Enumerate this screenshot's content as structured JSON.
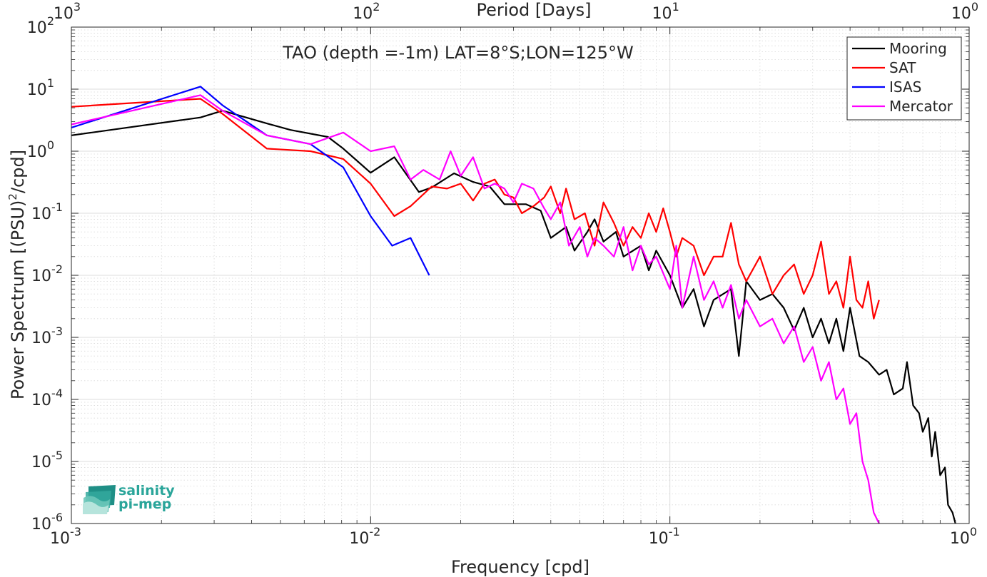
{
  "chart_data": {
    "type": "line",
    "title": "TAO (depth =-1m) LAT=8°S;LON=125°W",
    "xlabel": "Frequency [cpd]",
    "ylabel": "Power Spectrum [(PSU)",
    "ylabel_sup": "2",
    "ylabel_tail": "/cpd]",
    "top_xlabel": "Period [Days]",
    "xscale": "log",
    "yscale": "log",
    "xlim": [
      0.001,
      1
    ],
    "ylim": [
      1e-06,
      100
    ],
    "grid": true,
    "legend_position": "top-right",
    "x_ticks": [
      {
        "value": 0.001,
        "base": "10",
        "exp": "-3"
      },
      {
        "value": 0.01,
        "base": "10",
        "exp": "-2"
      },
      {
        "value": 0.1,
        "base": "10",
        "exp": "-1"
      },
      {
        "value": 1,
        "base": "10",
        "exp": "0"
      }
    ],
    "top_ticks": [
      {
        "value": 0.001,
        "base": "10",
        "exp": "3"
      },
      {
        "value": 0.01,
        "base": "10",
        "exp": "2"
      },
      {
        "value": 0.1,
        "base": "10",
        "exp": "1"
      },
      {
        "value": 1,
        "base": "10",
        "exp": "0"
      }
    ],
    "y_ticks": [
      {
        "value": 100,
        "base": "10",
        "exp": "2"
      },
      {
        "value": 10,
        "base": "10",
        "exp": "1"
      },
      {
        "value": 1,
        "base": "10",
        "exp": "0"
      },
      {
        "value": 0.1,
        "base": "10",
        "exp": "-1"
      },
      {
        "value": 0.01,
        "base": "10",
        "exp": "-2"
      },
      {
        "value": 0.001,
        "base": "10",
        "exp": "-3"
      },
      {
        "value": 0.0001,
        "base": "10",
        "exp": "-4"
      },
      {
        "value": 1e-05,
        "base": "10",
        "exp": "-5"
      },
      {
        "value": 1e-06,
        "base": "10",
        "exp": "-6"
      }
    ],
    "series": [
      {
        "name": "Mooring",
        "color": "#000000",
        "points": [
          [
            0.001,
            1.8
          ],
          [
            0.0027,
            3.5
          ],
          [
            0.0032,
            4.5
          ],
          [
            0.0045,
            2.8
          ],
          [
            0.0054,
            2.2
          ],
          [
            0.0072,
            1.7
          ],
          [
            0.0081,
            1.1
          ],
          [
            0.01,
            0.45
          ],
          [
            0.012,
            0.8
          ],
          [
            0.0145,
            0.22
          ],
          [
            0.016,
            0.26
          ],
          [
            0.019,
            0.44
          ],
          [
            0.022,
            0.32
          ],
          [
            0.025,
            0.27
          ],
          [
            0.028,
            0.14
          ],
          [
            0.033,
            0.14
          ],
          [
            0.037,
            0.11
          ],
          [
            0.04,
            0.04
          ],
          [
            0.045,
            0.06
          ],
          [
            0.048,
            0.025
          ],
          [
            0.053,
            0.05
          ],
          [
            0.056,
            0.08
          ],
          [
            0.06,
            0.035
          ],
          [
            0.066,
            0.05
          ],
          [
            0.07,
            0.02
          ],
          [
            0.08,
            0.03
          ],
          [
            0.085,
            0.012
          ],
          [
            0.09,
            0.025
          ],
          [
            0.1,
            0.01
          ],
          [
            0.11,
            0.003
          ],
          [
            0.12,
            0.006
          ],
          [
            0.13,
            0.0015
          ],
          [
            0.14,
            0.004
          ],
          [
            0.16,
            0.006
          ],
          [
            0.17,
            0.0005
          ],
          [
            0.18,
            0.008
          ],
          [
            0.2,
            0.004
          ],
          [
            0.22,
            0.005
          ],
          [
            0.24,
            0.003
          ],
          [
            0.26,
            0.0013
          ],
          [
            0.28,
            0.003
          ],
          [
            0.3,
            0.001
          ],
          [
            0.32,
            0.002
          ],
          [
            0.34,
            0.0008
          ],
          [
            0.36,
            0.002
          ],
          [
            0.38,
            0.0006
          ],
          [
            0.4,
            0.003
          ],
          [
            0.43,
            0.0005
          ],
          [
            0.46,
            0.0004
          ],
          [
            0.5,
            0.00025
          ],
          [
            0.53,
            0.0003
          ],
          [
            0.56,
            0.00012
          ],
          [
            0.6,
            0.00015
          ],
          [
            0.62,
            0.0004
          ],
          [
            0.65,
            8e-05
          ],
          [
            0.68,
            6e-05
          ],
          [
            0.7,
            3e-05
          ],
          [
            0.73,
            5e-05
          ],
          [
            0.75,
            1.2e-05
          ],
          [
            0.77,
            3e-05
          ],
          [
            0.8,
            6e-06
          ],
          [
            0.83,
            8e-06
          ],
          [
            0.85,
            2e-06
          ],
          [
            0.88,
            1.5e-06
          ],
          [
            0.9,
            1e-06
          ]
        ]
      },
      {
        "name": "SAT",
        "color": "#ff0000",
        "points": [
          [
            0.001,
            5.2
          ],
          [
            0.0027,
            7.0
          ],
          [
            0.0032,
            4.0
          ],
          [
            0.0045,
            1.1
          ],
          [
            0.0063,
            1.0
          ],
          [
            0.0081,
            0.75
          ],
          [
            0.01,
            0.3
          ],
          [
            0.012,
            0.09
          ],
          [
            0.0136,
            0.13
          ],
          [
            0.016,
            0.27
          ],
          [
            0.018,
            0.25
          ],
          [
            0.02,
            0.3
          ],
          [
            0.022,
            0.16
          ],
          [
            0.024,
            0.3
          ],
          [
            0.026,
            0.35
          ],
          [
            0.028,
            0.2
          ],
          [
            0.03,
            0.18
          ],
          [
            0.032,
            0.1
          ],
          [
            0.035,
            0.13
          ],
          [
            0.038,
            0.18
          ],
          [
            0.04,
            0.27
          ],
          [
            0.043,
            0.1
          ],
          [
            0.045,
            0.25
          ],
          [
            0.048,
            0.08
          ],
          [
            0.052,
            0.1
          ],
          [
            0.056,
            0.03
          ],
          [
            0.06,
            0.15
          ],
          [
            0.065,
            0.07
          ],
          [
            0.07,
            0.03
          ],
          [
            0.075,
            0.06
          ],
          [
            0.08,
            0.04
          ],
          [
            0.085,
            0.1
          ],
          [
            0.09,
            0.05
          ],
          [
            0.095,
            0.12
          ],
          [
            0.1,
            0.05
          ],
          [
            0.105,
            0.02
          ],
          [
            0.11,
            0.04
          ],
          [
            0.12,
            0.03
          ],
          [
            0.13,
            0.01
          ],
          [
            0.14,
            0.02
          ],
          [
            0.15,
            0.02
          ],
          [
            0.16,
            0.07
          ],
          [
            0.17,
            0.015
          ],
          [
            0.18,
            0.008
          ],
          [
            0.2,
            0.02
          ],
          [
            0.22,
            0.005
          ],
          [
            0.24,
            0.01
          ],
          [
            0.26,
            0.015
          ],
          [
            0.28,
            0.005
          ],
          [
            0.3,
            0.01
          ],
          [
            0.32,
            0.035
          ],
          [
            0.34,
            0.005
          ],
          [
            0.36,
            0.008
          ],
          [
            0.38,
            0.003
          ],
          [
            0.4,
            0.02
          ],
          [
            0.42,
            0.004
          ],
          [
            0.44,
            0.003
          ],
          [
            0.46,
            0.008
          ],
          [
            0.48,
            0.002
          ],
          [
            0.5,
            0.004
          ]
        ]
      },
      {
        "name": "ISAS",
        "color": "#0000ff",
        "points": [
          [
            0.001,
            2.4
          ],
          [
            0.0027,
            11.0
          ],
          [
            0.0032,
            5.5
          ],
          [
            0.0045,
            1.8
          ],
          [
            0.0063,
            1.3
          ],
          [
            0.0081,
            0.55
          ],
          [
            0.01,
            0.09
          ],
          [
            0.0118,
            0.03
          ],
          [
            0.0136,
            0.04
          ],
          [
            0.0157,
            0.01
          ]
        ]
      },
      {
        "name": "Mercator",
        "color": "#ff00ff",
        "points": [
          [
            0.001,
            2.7
          ],
          [
            0.0027,
            8.0
          ],
          [
            0.0032,
            4.5
          ],
          [
            0.0045,
            1.8
          ],
          [
            0.0063,
            1.3
          ],
          [
            0.0081,
            2.0
          ],
          [
            0.01,
            1.0
          ],
          [
            0.012,
            1.2
          ],
          [
            0.0136,
            0.35
          ],
          [
            0.015,
            0.5
          ],
          [
            0.017,
            0.35
          ],
          [
            0.0185,
            1.0
          ],
          [
            0.02,
            0.4
          ],
          [
            0.022,
            0.8
          ],
          [
            0.024,
            0.25
          ],
          [
            0.026,
            0.3
          ],
          [
            0.028,
            0.25
          ],
          [
            0.03,
            0.15
          ],
          [
            0.032,
            0.3
          ],
          [
            0.035,
            0.25
          ],
          [
            0.038,
            0.12
          ],
          [
            0.04,
            0.08
          ],
          [
            0.043,
            0.15
          ],
          [
            0.046,
            0.03
          ],
          [
            0.05,
            0.06
          ],
          [
            0.053,
            0.02
          ],
          [
            0.056,
            0.04
          ],
          [
            0.06,
            0.03
          ],
          [
            0.065,
            0.02
          ],
          [
            0.07,
            0.06
          ],
          [
            0.075,
            0.012
          ],
          [
            0.08,
            0.03
          ],
          [
            0.085,
            0.015
          ],
          [
            0.09,
            0.02
          ],
          [
            0.1,
            0.006
          ],
          [
            0.105,
            0.03
          ],
          [
            0.11,
            0.003
          ],
          [
            0.12,
            0.02
          ],
          [
            0.13,
            0.004
          ],
          [
            0.14,
            0.008
          ],
          [
            0.15,
            0.003
          ],
          [
            0.16,
            0.007
          ],
          [
            0.17,
            0.002
          ],
          [
            0.18,
            0.004
          ],
          [
            0.2,
            0.0015
          ],
          [
            0.22,
            0.002
          ],
          [
            0.24,
            0.0008
          ],
          [
            0.26,
            0.0015
          ],
          [
            0.28,
            0.0004
          ],
          [
            0.3,
            0.0007
          ],
          [
            0.32,
            0.0002
          ],
          [
            0.34,
            0.0004
          ],
          [
            0.36,
            0.0001
          ],
          [
            0.38,
            0.00015
          ],
          [
            0.4,
            4e-05
          ],
          [
            0.42,
            6e-05
          ],
          [
            0.44,
            1e-05
          ],
          [
            0.46,
            5e-06
          ],
          [
            0.48,
            1.5e-06
          ],
          [
            0.5,
            1e-06
          ]
        ]
      }
    ]
  },
  "logo": {
    "line1": "salinity",
    "line2": "pi-mep",
    "color": "#2aa59a"
  }
}
